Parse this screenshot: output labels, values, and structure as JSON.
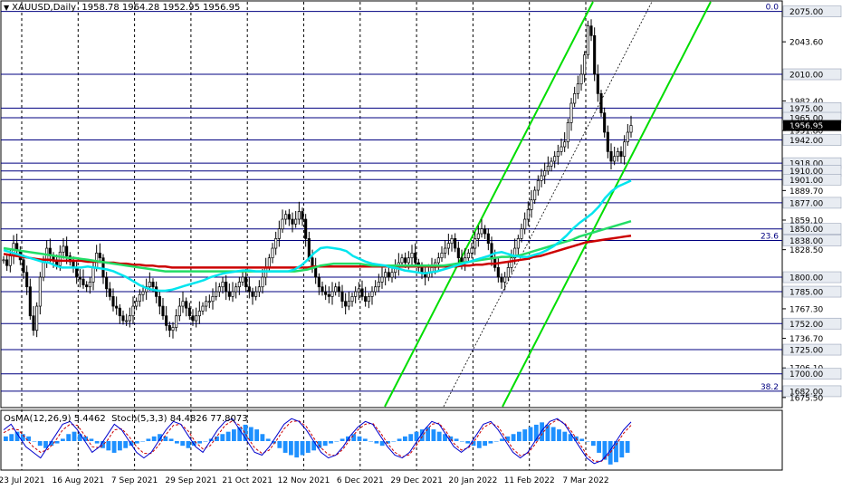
{
  "symbol_info": {
    "symbol": "XAUUSD,Daily",
    "open": "1958.78",
    "high": "1964.28",
    "low": "1952.95",
    "close": "1956.95"
  },
  "indicator_info": {
    "osma": "OsMA(12,26,9) 5.4462",
    "stoch": "Stoch(5,3,3) 84.4826 77.8073"
  },
  "colors": {
    "up_candle": "#000000",
    "down_candle": "#000000",
    "ema_fast": "#00e5ee",
    "ema_mid": "#22dd66",
    "ema_slow": "#cc0000",
    "channel": "#00dd00",
    "level_line": "#000080",
    "price_marker": "#000000",
    "osma_bar": "#1e90ff",
    "stoch_main": "#0000cc",
    "stoch_signal": "#cc0000"
  },
  "chart_data": {
    "type": "candlestick",
    "title": "XAUUSD,Daily",
    "ylim": [
      1666,
      2085
    ],
    "price_axis_ticks": [
      "2075.00",
      "2043.60",
      "2010.00",
      "1982.40",
      "1975.00",
      "1965.00",
      "1956.95",
      "1951.80",
      "1942.00",
      "1918.00",
      "1910.00",
      "1901.00",
      "1889.70",
      "1877.00",
      "1859.10",
      "1850.00",
      "1838.00",
      "1828.50",
      "1800.00",
      "1785.00",
      "1767.30",
      "1752.00",
      "1736.70",
      "1725.00",
      "1706.10",
      "1700.00",
      "1682.00",
      "1675.50"
    ],
    "date_ticks": [
      "23 Jul 2021",
      "16 Aug 2021",
      "7 Sep 2021",
      "29 Sep 2021",
      "21 Oct 2021",
      "12 Nov 2021",
      "6 Dec 2021",
      "29 Dec 2021",
      "20 Jan 2022",
      "11 Feb 2022",
      "7 Mar 2022"
    ],
    "horizontal_levels": [
      2075.0,
      2010.0,
      1975.0,
      1965.0,
      1942.0,
      1918.0,
      1910.0,
      1901.0,
      1877.0,
      1850.0,
      1838.0,
      1800.0,
      1785.0,
      1752.0,
      1725.0,
      1700.0,
      1682.0
    ],
    "fib_labels": [
      {
        "text": "0.0",
        "price": 2075.0
      },
      {
        "text": "23.6",
        "price": 1838.0
      },
      {
        "text": "38.2",
        "price": 1682.0
      }
    ],
    "current_price": 1956.95,
    "close_series": [
      1818,
      1812,
      1822,
      1835,
      1828,
      1818,
      1805,
      1790,
      1760,
      1745,
      1770,
      1800,
      1815,
      1830,
      1822,
      1818,
      1812,
      1826,
      1832,
      1822,
      1816,
      1810,
      1800,
      1798,
      1792,
      1790,
      1795,
      1810,
      1825,
      1820,
      1800,
      1788,
      1780,
      1770,
      1768,
      1760,
      1755,
      1755,
      1760,
      1770,
      1775,
      1782,
      1785,
      1790,
      1795,
      1790,
      1780,
      1770,
      1760,
      1750,
      1745,
      1748,
      1760,
      1770,
      1775,
      1768,
      1760,
      1755,
      1760,
      1765,
      1770,
      1775,
      1775,
      1780,
      1785,
      1790,
      1795,
      1785,
      1780,
      1785,
      1790,
      1795,
      1800,
      1790,
      1785,
      1780,
      1785,
      1790,
      1800,
      1810,
      1820,
      1830,
      1840,
      1850,
      1860,
      1865,
      1860,
      1855,
      1860,
      1868,
      1860,
      1840,
      1820,
      1810,
      1800,
      1790,
      1785,
      1782,
      1780,
      1785,
      1790,
      1785,
      1775,
      1770,
      1775,
      1780,
      1785,
      1788,
      1780,
      1775,
      1780,
      1785,
      1790,
      1795,
      1800,
      1805,
      1800,
      1805,
      1810,
      1815,
      1820,
      1815,
      1820,
      1825,
      1815,
      1810,
      1805,
      1800,
      1805,
      1810,
      1815,
      1820,
      1825,
      1830,
      1835,
      1840,
      1830,
      1820,
      1815,
      1820,
      1825,
      1830,
      1840,
      1845,
      1850,
      1845,
      1835,
      1820,
      1810,
      1800,
      1795,
      1800,
      1810,
      1820,
      1830,
      1840,
      1850,
      1860,
      1870,
      1880,
      1890,
      1900,
      1905,
      1910,
      1915,
      1920,
      1925,
      1930,
      1935,
      1940,
      1960,
      1980,
      1990,
      2000,
      2010,
      2030,
      2060,
      2050,
      2010,
      1990,
      1970,
      1950,
      1930,
      1920,
      1925,
      1930,
      1925,
      1940,
      1950,
      1957
    ],
    "ema_fast": [
      1828,
      1826,
      1824,
      1822,
      1820,
      1818,
      1816,
      1815,
      1812,
      1810,
      1810,
      1810,
      1810,
      1811,
      1810,
      1809,
      1808,
      1806,
      1803,
      1800,
      1796,
      1792,
      1789,
      1787,
      1786,
      1786,
      1787,
      1789,
      1791,
      1793,
      1795,
      1797,
      1800,
      1802,
      1804,
      1805,
      1806,
      1807,
      1807,
      1806,
      1806,
      1806,
      1806,
      1806,
      1806,
      1808,
      1812,
      1818,
      1825,
      1830,
      1831,
      1830,
      1829,
      1827,
      1822,
      1819,
      1816,
      1814,
      1813,
      1812,
      1810,
      1809,
      1807,
      1806,
      1805,
      1804,
      1805,
      1806,
      1808,
      1810,
      1812,
      1814,
      1816,
      1818,
      1820,
      1822,
      1825,
      1826,
      1824,
      1822,
      1821,
      1821,
      1823,
      1825,
      1828,
      1832,
      1837,
      1843,
      1850,
      1856,
      1861,
      1866,
      1873,
      1882,
      1889,
      1894,
      1897,
      1900
    ],
    "ema_mid": [
      1830,
      1829,
      1828,
      1827,
      1826,
      1825,
      1824,
      1823,
      1822,
      1821,
      1820,
      1820,
      1819,
      1818,
      1817,
      1816,
      1815,
      1814,
      1813,
      1812,
      1811,
      1810,
      1809,
      1808,
      1807,
      1806,
      1806,
      1806,
      1806,
      1806,
      1806,
      1806,
      1806,
      1806,
      1806,
      1806,
      1806,
      1806,
      1806,
      1806,
      1806,
      1806,
      1806,
      1806,
      1806,
      1806,
      1807,
      1808,
      1810,
      1812,
      1813,
      1814,
      1814,
      1814,
      1814,
      1814,
      1813,
      1812,
      1812,
      1812,
      1812,
      1812,
      1812,
      1812,
      1812,
      1812,
      1812,
      1812,
      1812,
      1813,
      1814,
      1815,
      1816,
      1817,
      1818,
      1819,
      1820,
      1821,
      1821,
      1822,
      1823,
      1825,
      1827,
      1829,
      1831,
      1833,
      1835,
      1837,
      1839,
      1842,
      1844,
      1846,
      1848,
      1850,
      1852,
      1854,
      1856,
      1858
    ],
    "ema_slow": [
      1824,
      1823,
      1822,
      1821,
      1820,
      1819,
      1818,
      1818,
      1817,
      1817,
      1817,
      1817,
      1817,
      1816,
      1816,
      1816,
      1815,
      1815,
      1814,
      1814,
      1813,
      1813,
      1812,
      1812,
      1811,
      1811,
      1810,
      1810,
      1810,
      1810,
      1810,
      1810,
      1810,
      1810,
      1810,
      1810,
      1810,
      1810,
      1810,
      1810,
      1810,
      1810,
      1810,
      1810,
      1810,
      1810,
      1810,
      1810,
      1811,
      1811,
      1811,
      1811,
      1811,
      1811,
      1811,
      1811,
      1811,
      1811,
      1811,
      1811,
      1811,
      1811,
      1811,
      1811,
      1811,
      1811,
      1811,
      1811,
      1811,
      1811,
      1811,
      1812,
      1812,
      1813,
      1813,
      1814,
      1814,
      1815,
      1816,
      1817,
      1818,
      1819,
      1821,
      1822,
      1824,
      1826,
      1828,
      1830,
      1832,
      1834,
      1836,
      1837,
      1838,
      1839,
      1840,
      1841,
      1842,
      1843
    ],
    "osma_values": [
      2,
      3,
      4,
      3,
      2,
      0,
      -2,
      -3,
      -2,
      -1,
      1,
      3,
      4,
      3,
      2,
      1,
      -1,
      -3,
      -4,
      -5,
      -4,
      -3,
      -2,
      -1,
      0,
      1,
      2,
      3,
      2,
      1,
      -1,
      -2,
      -3,
      -2,
      -1,
      0,
      1,
      2,
      3,
      4,
      5,
      6,
      7,
      6,
      5,
      3,
      1,
      -1,
      -3,
      -5,
      -6,
      -7,
      -6,
      -5,
      -4,
      -3,
      -2,
      -1,
      0,
      1,
      2,
      3,
      2,
      1,
      0,
      -1,
      -2,
      -1,
      0,
      1,
      2,
      3,
      4,
      5,
      6,
      5,
      4,
      3,
      2,
      1,
      0,
      -1,
      -2,
      -3,
      -2,
      -1,
      0,
      1,
      2,
      3,
      4,
      5,
      6,
      7,
      8,
      7,
      6,
      5,
      4,
      3,
      2,
      1,
      0,
      -2,
      -5,
      -8,
      -10,
      -9,
      -7,
      -5
    ],
    "stoch_main": [
      70,
      80,
      60,
      40,
      30,
      20,
      40,
      60,
      80,
      85,
      70,
      50,
      30,
      40,
      60,
      80,
      70,
      50,
      30,
      20,
      30,
      50,
      70,
      85,
      80,
      60,
      40,
      30,
      50,
      70,
      85,
      90,
      70,
      50,
      30,
      25,
      40,
      60,
      80,
      90,
      85,
      70,
      50,
      30,
      20,
      25,
      40,
      60,
      75,
      85,
      80,
      60,
      40,
      25,
      20,
      30,
      50,
      70,
      85,
      80,
      60,
      40,
      30,
      40,
      60,
      80,
      85,
      70,
      50,
      30,
      20,
      30,
      50,
      70,
      85,
      90,
      80,
      60,
      40,
      20,
      10,
      15,
      30,
      50,
      70,
      84
    ],
    "stoch_signal": [
      65,
      72,
      70,
      55,
      40,
      30,
      35,
      50,
      70,
      80,
      78,
      60,
      40,
      38,
      50,
      70,
      72,
      58,
      40,
      28,
      28,
      42,
      62,
      78,
      80,
      68,
      48,
      36,
      42,
      60,
      78,
      86,
      78,
      58,
      38,
      28,
      34,
      52,
      72,
      85,
      86,
      76,
      56,
      38,
      26,
      24,
      36,
      54,
      70,
      80,
      82,
      66,
      46,
      30,
      22,
      26,
      44,
      64,
      80,
      82,
      66,
      46,
      34,
      38,
      54,
      74,
      82,
      76,
      56,
      36,
      24,
      28,
      44,
      64,
      80,
      88,
      82,
      66,
      46,
      26,
      14,
      14,
      26,
      44,
      64,
      78
    ]
  }
}
